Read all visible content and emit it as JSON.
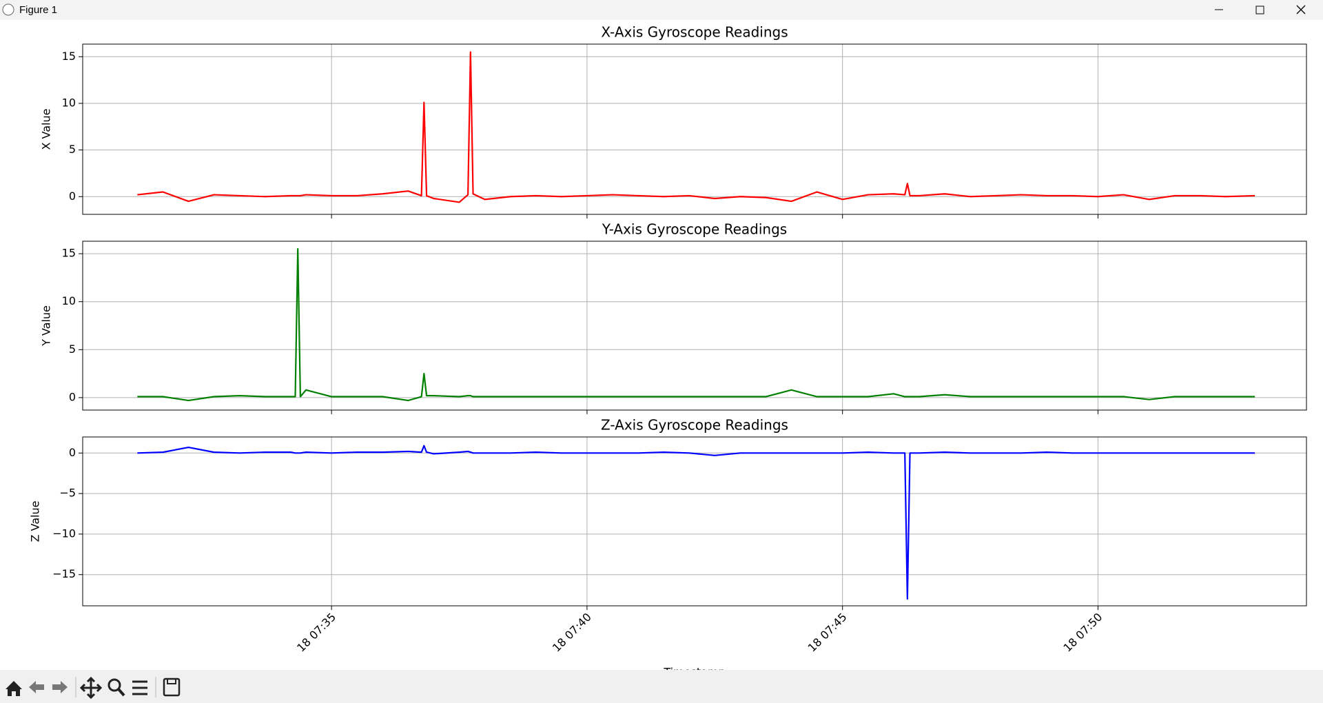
{
  "window": {
    "title": "Figure 1"
  },
  "chart_data": [
    {
      "type": "line",
      "title": "X-Axis Gyroscope Readings",
      "ylabel": "X Value",
      "color": "#ff0000",
      "grid": true,
      "sharex": true,
      "xlim": [
        30.13,
        54.08
      ],
      "ylim": [
        -1.9,
        16.35
      ],
      "yticks": [
        0,
        5,
        10,
        15
      ],
      "x": [
        31.2,
        31.7,
        32.2,
        32.7,
        33.2,
        33.7,
        34.2,
        34.29,
        34.34,
        34.39,
        34.5,
        35.0,
        35.5,
        36.0,
        36.5,
        36.76,
        36.81,
        36.86,
        37.0,
        37.5,
        37.67,
        37.72,
        37.77,
        38.0,
        38.5,
        39.0,
        39.5,
        40.0,
        40.5,
        41.0,
        41.5,
        42.0,
        42.5,
        43.0,
        43.5,
        44.0,
        44.5,
        45.0,
        45.5,
        46.0,
        46.22,
        46.27,
        46.32,
        46.5,
        47.0,
        47.5,
        48.0,
        48.5,
        49.0,
        49.5,
        50.0,
        50.5,
        51.0,
        51.5,
        52.0,
        52.5,
        53.07
      ],
      "values": [
        0.2,
        0.5,
        -0.5,
        0.2,
        0.1,
        0.0,
        0.1,
        0.1,
        0.1,
        0.1,
        0.2,
        0.1,
        0.1,
        0.3,
        0.6,
        0.1,
        10.1,
        0.1,
        -0.2,
        -0.6,
        0.2,
        15.5,
        0.3,
        -0.3,
        0.0,
        0.1,
        0.0,
        0.1,
        0.2,
        0.1,
        0.0,
        0.1,
        -0.2,
        0.0,
        -0.1,
        -0.5,
        0.5,
        -0.3,
        0.2,
        0.3,
        0.2,
        1.4,
        0.1,
        0.1,
        0.3,
        0.0,
        0.1,
        0.2,
        0.1,
        0.1,
        0.0,
        0.2,
        -0.3,
        0.1,
        0.1,
        0.0,
        0.1
      ]
    },
    {
      "type": "line",
      "title": "Y-Axis Gyroscope Readings",
      "ylabel": "Y Value",
      "color": "#008000",
      "grid": true,
      "sharex": true,
      "xlim": [
        30.13,
        54.08
      ],
      "ylim": [
        -1.3,
        16.3
      ],
      "yticks": [
        0,
        5,
        10,
        15
      ],
      "x": [
        31.2,
        31.7,
        32.2,
        32.7,
        33.2,
        33.7,
        34.2,
        34.29,
        34.34,
        34.39,
        34.5,
        35.0,
        35.5,
        36.0,
        36.5,
        36.76,
        36.81,
        36.86,
        37.0,
        37.5,
        37.67,
        37.72,
        37.77,
        38.0,
        38.5,
        39.0,
        39.5,
        40.0,
        40.5,
        41.0,
        41.5,
        42.0,
        42.5,
        43.0,
        43.5,
        44.0,
        44.5,
        45.0,
        45.5,
        46.0,
        46.22,
        46.27,
        46.32,
        46.5,
        47.0,
        47.5,
        48.0,
        48.5,
        49.0,
        49.5,
        50.0,
        50.5,
        51.0,
        51.5,
        52.0,
        52.5,
        53.07
      ],
      "values": [
        0.1,
        0.1,
        -0.3,
        0.1,
        0.2,
        0.1,
        0.1,
        0.1,
        15.5,
        0.1,
        0.8,
        0.1,
        0.1,
        0.1,
        -0.3,
        0.1,
        2.5,
        0.2,
        0.2,
        0.1,
        0.2,
        0.2,
        0.1,
        0.1,
        0.1,
        0.1,
        0.1,
        0.1,
        0.1,
        0.1,
        0.1,
        0.1,
        0.1,
        0.1,
        0.1,
        0.8,
        0.1,
        0.1,
        0.1,
        0.4,
        0.1,
        0.1,
        0.1,
        0.1,
        0.3,
        0.1,
        0.1,
        0.1,
        0.1,
        0.1,
        0.1,
        0.1,
        -0.2,
        0.1,
        0.1,
        0.1,
        0.1
      ]
    },
    {
      "type": "line",
      "title": "Z-Axis Gyroscope Readings",
      "ylabel": "Z Value",
      "xlabel": "Timestamp",
      "color": "#0000ff",
      "grid": true,
      "xlim": [
        30.13,
        54.08
      ],
      "ylim": [
        -18.85,
        1.98
      ],
      "yticks": [
        {
          "value": -15,
          "label": "−15"
        },
        {
          "value": -10,
          "label": "−10"
        },
        {
          "value": -5,
          "label": "−5"
        },
        0
      ],
      "xticks": [
        {
          "value": 35,
          "label": "18 07:35"
        },
        {
          "value": 40,
          "label": "18 07:40"
        },
        {
          "value": 45,
          "label": "18 07:45"
        },
        {
          "value": 50,
          "label": "18 07:50"
        }
      ],
      "x": [
        31.2,
        31.7,
        32.2,
        32.7,
        33.2,
        33.7,
        34.2,
        34.29,
        34.34,
        34.39,
        34.5,
        35.0,
        35.5,
        36.0,
        36.5,
        36.76,
        36.81,
        36.86,
        37.0,
        37.5,
        37.67,
        37.72,
        37.77,
        38.0,
        38.5,
        39.0,
        39.5,
        40.0,
        40.5,
        41.0,
        41.5,
        42.0,
        42.5,
        43.0,
        43.5,
        44.0,
        44.5,
        45.0,
        45.5,
        46.0,
        46.22,
        46.27,
        46.32,
        46.5,
        47.0,
        47.5,
        48.0,
        48.5,
        49.0,
        49.5,
        50.0,
        50.5,
        51.0,
        51.5,
        52.0,
        52.5,
        53.07
      ],
      "values": [
        0.0,
        0.1,
        0.7,
        0.1,
        0.0,
        0.1,
        0.1,
        0.0,
        0.0,
        0.0,
        0.1,
        0.0,
        0.1,
        0.1,
        0.2,
        0.1,
        0.9,
        0.1,
        -0.1,
        0.1,
        0.2,
        0.1,
        0.0,
        0.0,
        0.0,
        0.1,
        0.0,
        0.0,
        0.0,
        0.0,
        0.1,
        0.0,
        -0.3,
        0.0,
        0.0,
        0.0,
        0.0,
        0.0,
        0.1,
        0.0,
        0.0,
        -18.0,
        0.0,
        0.0,
        0.1,
        0.0,
        0.0,
        0.0,
        0.1,
        0.0,
        0.0,
        0.0,
        0.0,
        0.0,
        0.0,
        0.0,
        0.0
      ]
    }
  ]
}
